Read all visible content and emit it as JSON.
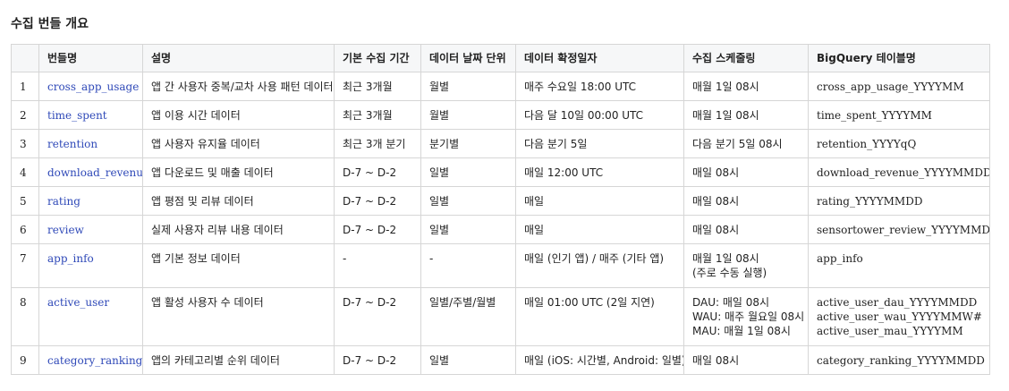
{
  "section_title": "수집 번들 개요",
  "table": {
    "headers": [
      "",
      "번들명",
      "설명",
      "기본 수집 기간",
      "데이터 날짜 단위",
      "데이터 확정일자",
      "수집 스케줄링",
      "BigQuery 테이블명"
    ],
    "rows": [
      {
        "no": "1",
        "bundle": "cross_app_usage",
        "description": "앱 간 사용자 중복/교차 사용 패턴 데이터",
        "period": "최근 3개월",
        "date_unit": "월별",
        "confirm_date": "매주 수요일 18:00 UTC",
        "schedule": [
          "매월 1일 08시"
        ],
        "bq_table": [
          "cross_app_usage_YYYYMM"
        ]
      },
      {
        "no": "2",
        "bundle": "time_spent",
        "description": "앱 이용 시간 데이터",
        "period": "최근 3개월",
        "date_unit": "월별",
        "confirm_date": "다음 달 10일 00:00 UTC",
        "schedule": [
          "매월 1일 08시"
        ],
        "bq_table": [
          "time_spent_YYYYMM"
        ]
      },
      {
        "no": "3",
        "bundle": "retention",
        "description": "앱 사용자 유지율 데이터",
        "period": "최근 3개 분기",
        "date_unit": "분기별",
        "confirm_date": "다음 분기 5일",
        "schedule": [
          "다음 분기 5일 08시"
        ],
        "bq_table": [
          "retention_YYYYqQ"
        ]
      },
      {
        "no": "4",
        "bundle": "download_revenue",
        "description": "앱 다운로드 및 매출 데이터",
        "period": "D-7 ~ D-2",
        "date_unit": "일별",
        "confirm_date": "매일 12:00 UTC",
        "schedule": [
          "매일 08시"
        ],
        "bq_table": [
          "download_revenue_YYYYMMDD"
        ]
      },
      {
        "no": "5",
        "bundle": "rating",
        "description": "앱 평점 및 리뷰 데이터",
        "period": "D-7 ~ D-2",
        "date_unit": "일별",
        "confirm_date": "매일",
        "schedule": [
          "매일 08시"
        ],
        "bq_table": [
          "rating_YYYYMMDD"
        ]
      },
      {
        "no": "6",
        "bundle": "review",
        "description": "실제 사용자 리뷰 내용 데이터",
        "period": "D-7 ~ D-2",
        "date_unit": "일별",
        "confirm_date": "매일",
        "schedule": [
          "매일 08시"
        ],
        "bq_table": [
          "sensortower_review_YYYYMMDD"
        ]
      },
      {
        "no": "7",
        "bundle": "app_info",
        "description": "앱 기본 정보 데이터",
        "period": "-",
        "date_unit": "-",
        "confirm_date": "매일 (인기 앱) / 매주 (기타 앱)",
        "schedule": [
          "매월 1일 08시",
          "(주로 수동 실행)"
        ],
        "bq_table": [
          "app_info"
        ]
      },
      {
        "no": "8",
        "bundle": "active_user",
        "description": "앱 활성 사용자 수 데이터",
        "period": "D-7 ~ D-2",
        "date_unit": "일별/주별/월별",
        "confirm_date": "매일 01:00 UTC (2일 지연)",
        "schedule": [
          "DAU: 매일 08시",
          "WAU: 매주 월요일 08시",
          "MAU: 매월 1일 08시"
        ],
        "bq_table": [
          "active_user_dau_YYYYMMDD",
          "active_user_wau_YYYYMMW#",
          "active_user_mau_YYYYMM"
        ]
      },
      {
        "no": "9",
        "bundle": "category_ranking",
        "description": "앱의 카테고리별 순위 데이터",
        "period": "D-7 ~ D-2",
        "date_unit": "일별",
        "confirm_date": "매일 (iOS: 시간별, Android: 일별)",
        "schedule": [
          "매일 08시"
        ],
        "bq_table": [
          "category_ranking_YYYYMMDD"
        ]
      }
    ]
  }
}
